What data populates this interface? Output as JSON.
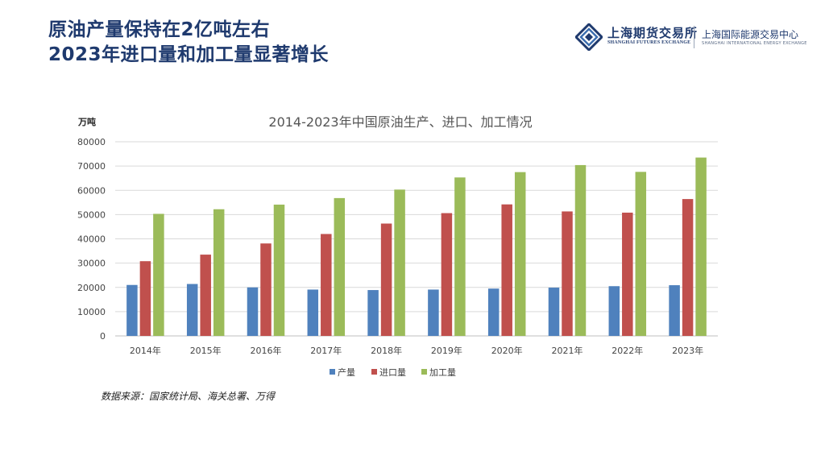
{
  "slide": {
    "title_line1": "原油产量保持在2亿吨左右",
    "title_line2": "2023年进口量和加工量显著增长",
    "source": "数据来源：国家统计局、海关总署、万得"
  },
  "logo": {
    "shfe_cn": "上海期货交易所",
    "shfe_en": "SHANGHAI FUTURES EXCHANGE",
    "ine_cn": "上海国际能源交易中心",
    "ine_en": "SHANGHAI INTERNATIONAL ENERGY EXCHANGE"
  },
  "colors": {
    "title": "#1f3a6e",
    "prod": "#4f81bd",
    "import": "#c0504d",
    "process": "#9bbb59"
  },
  "chart_data": {
    "type": "bar",
    "title": "2014-2023年中国原油生产、进口、加工情况",
    "ylabel": "万吨",
    "xlabel": "",
    "ylim": [
      0,
      80000
    ],
    "yticks": [
      0,
      10000,
      20000,
      30000,
      40000,
      50000,
      60000,
      70000,
      80000
    ],
    "grid": true,
    "legend_position": "bottom",
    "categories": [
      "2014年",
      "2015年",
      "2016年",
      "2017年",
      "2018年",
      "2019年",
      "2020年",
      "2021年",
      "2022年",
      "2023年"
    ],
    "series": [
      {
        "name": "产量",
        "color": "#4f81bd",
        "values": [
          21000,
          21400,
          20000,
          19100,
          18900,
          19100,
          19500,
          19900,
          20500,
          20900
        ]
      },
      {
        "name": "进口量",
        "color": "#c0504d",
        "values": [
          30800,
          33500,
          38100,
          42000,
          46300,
          50600,
          54200,
          51300,
          50800,
          56400
        ]
      },
      {
        "name": "加工量",
        "color": "#9bbb59",
        "values": [
          50300,
          52200,
          54100,
          56800,
          60300,
          65300,
          67500,
          70400,
          67600,
          73500
        ]
      }
    ]
  }
}
